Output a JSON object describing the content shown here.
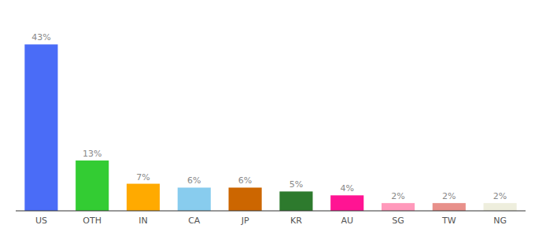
{
  "chart_data": {
    "type": "bar",
    "categories": [
      "US",
      "OTH",
      "IN",
      "CA",
      "JP",
      "KR",
      "AU",
      "SG",
      "TW",
      "NG"
    ],
    "values": [
      43,
      13,
      7,
      6,
      6,
      5,
      4,
      2,
      2,
      2
    ],
    "value_labels": [
      "43%",
      "13%",
      "7%",
      "6%",
      "6%",
      "5%",
      "4%",
      "2%",
      "2%",
      "2%"
    ],
    "colors": [
      "#4a6cf7",
      "#33cc33",
      "#ffaa00",
      "#88ccee",
      "#cc6600",
      "#2d7a2d",
      "#ff1493",
      "#ff99bb",
      "#e8908a",
      "#eeeedd"
    ],
    "ylim": [
      0,
      50
    ],
    "data_labels": true,
    "tick_labels": "x",
    "grid": false
  }
}
